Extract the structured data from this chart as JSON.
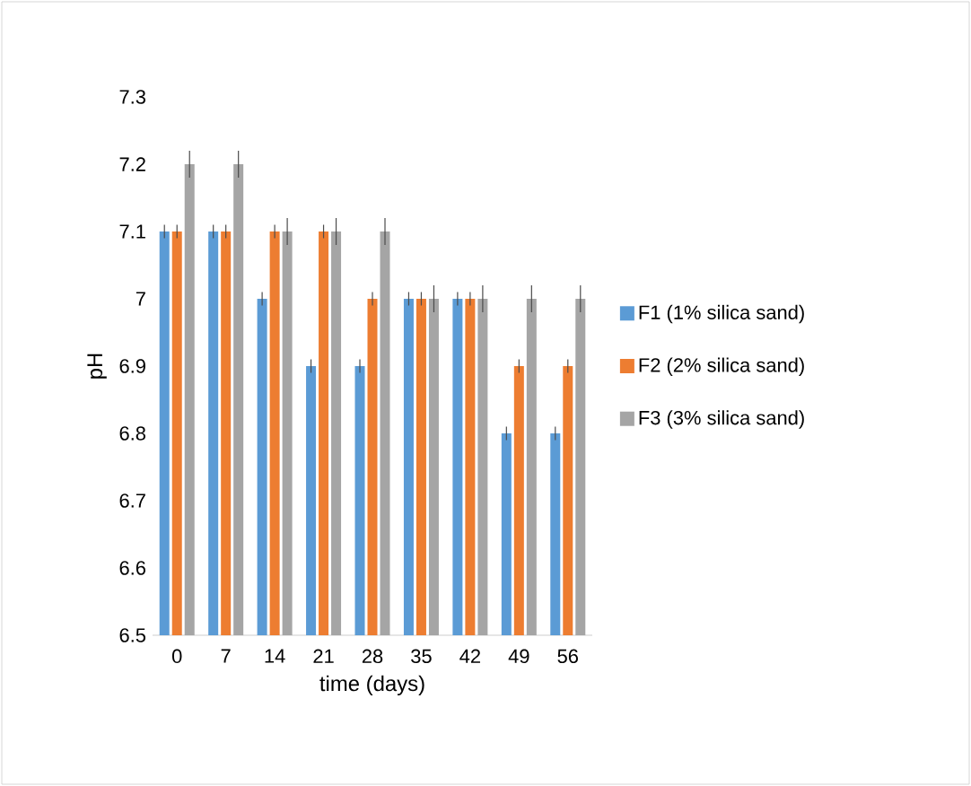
{
  "chart_data": {
    "type": "bar",
    "xlabel": "time (days)",
    "ylabel": "pH",
    "categories": [
      "0",
      "7",
      "14",
      "21",
      "28",
      "35",
      "42",
      "49",
      "56"
    ],
    "series": [
      {
        "name": "F1 (1% silica sand)",
        "color": "#5b9bd5",
        "values": [
          7.1,
          7.1,
          7.0,
          6.9,
          6.9,
          7.0,
          7.0,
          6.8,
          6.8
        ],
        "errors": [
          0.01,
          0.01,
          0.01,
          0.01,
          0.01,
          0.01,
          0.01,
          0.01,
          0.01
        ]
      },
      {
        "name": "F2 (2% silica sand)",
        "color": "#ed7d31",
        "values": [
          7.1,
          7.1,
          7.1,
          7.1,
          7.0,
          7.0,
          7.0,
          6.9,
          6.9
        ],
        "errors": [
          0.01,
          0.01,
          0.01,
          0.01,
          0.01,
          0.01,
          0.01,
          0.01,
          0.01
        ]
      },
      {
        "name": "F3 (3% silica sand)",
        "color": "#a5a5a5",
        "values": [
          7.2,
          7.2,
          7.1,
          7.1,
          7.1,
          7.0,
          7.0,
          7.0,
          7.0
        ],
        "errors": [
          0.02,
          0.02,
          0.02,
          0.02,
          0.02,
          0.02,
          0.02,
          0.02,
          0.02
        ]
      }
    ],
    "ylim": [
      6.5,
      7.3
    ],
    "yticks": [
      6.5,
      6.6,
      6.7,
      6.8,
      6.9,
      7,
      7.1,
      7.2,
      7.3
    ],
    "grid": false,
    "legend": "right"
  }
}
